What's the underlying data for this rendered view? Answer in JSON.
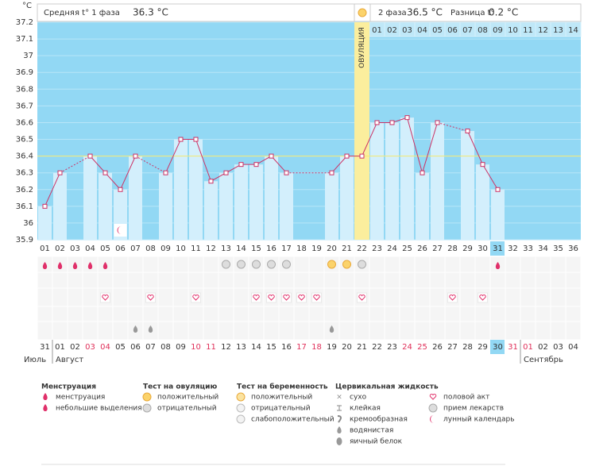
{
  "header": {
    "phase1_label": "Средняя t° 1 фаза",
    "phase1_value": "36.3 °C",
    "phase2_label": "2 фаза",
    "phase2_value": "36.5 °C",
    "diff_label": "Разница t°",
    "diff_value": "0.2 °C"
  },
  "chart_data": {
    "type": "line",
    "y_unit": "°C",
    "categories": [
      "01",
      "02",
      "03",
      "04",
      "05",
      "06",
      "07",
      "08",
      "09",
      "10",
      "11",
      "12",
      "13",
      "14",
      "15",
      "16",
      "17",
      "18",
      "19",
      "20",
      "21",
      "22",
      "23",
      "24",
      "25",
      "26",
      "27",
      "28",
      "29",
      "30",
      "31",
      "32",
      "33",
      "34",
      "35",
      "36"
    ],
    "values": [
      36.1,
      36.3,
      null,
      36.4,
      36.3,
      36.2,
      36.4,
      null,
      36.3,
      36.5,
      36.5,
      36.25,
      36.3,
      36.35,
      36.35,
      36.4,
      36.3,
      null,
      null,
      36.3,
      36.4,
      36.4,
      36.6,
      36.6,
      36.63,
      36.3,
      36.6,
      null,
      36.55,
      36.35,
      36.2,
      null,
      null,
      null,
      null,
      null
    ],
    "color": "#cc3366",
    "ylim": [
      35.9,
      37.2
    ],
    "yticks": [
      35.9,
      36,
      36.1,
      36.2,
      36.3,
      36.4,
      36.5,
      36.6,
      36.7,
      36.8,
      36.9,
      37,
      37.1,
      37.2
    ],
    "grid": true,
    "coverline": 36.4,
    "ovulation_category": "22",
    "ovulation_label": "ОВУЛЯЦИЯ",
    "phase2_days": [
      "01",
      "02",
      "03",
      "04",
      "05",
      "06",
      "07",
      "08",
      "09",
      "10",
      "11",
      "12",
      "13",
      "14"
    ],
    "today_category": "31",
    "dates": [
      "31",
      "01",
      "02",
      "03",
      "04",
      "05",
      "06",
      "07",
      "08",
      "09",
      "10",
      "11",
      "12",
      "13",
      "14",
      "15",
      "16",
      "17",
      "18",
      "19",
      "20",
      "21",
      "22",
      "23",
      "24",
      "25",
      "26",
      "27",
      "28",
      "29",
      "30",
      "31",
      "01",
      "02",
      "03",
      "04"
    ],
    "holidays": [
      3,
      4,
      10,
      11,
      17,
      18,
      24,
      25,
      31,
      32
    ],
    "months": [
      {
        "label": "Июль",
        "start": 0
      },
      {
        "label": "Август",
        "start": 1
      },
      {
        "label": "Сентябрь",
        "start": 32
      }
    ],
    "icons": {
      "menstruation": [
        0,
        1,
        2,
        3,
        4,
        30
      ],
      "ovulation_negative": [
        12,
        13,
        14,
        15,
        16,
        21
      ],
      "ovulation_positive": [
        19,
        20
      ],
      "intercourse": [
        4,
        7,
        10,
        14,
        15,
        16,
        17,
        18,
        21,
        27,
        29
      ],
      "watery": [
        6,
        7,
        19
      ],
      "lunar": [
        5
      ]
    }
  },
  "legend": [
    {
      "title": "Менструация",
      "items": [
        "менструация",
        "небольшие выделения"
      ]
    },
    {
      "title": "Тест на овуляцию",
      "items": [
        "положительный",
        "отрицательный"
      ]
    },
    {
      "title": "Тест на беременность",
      "items": [
        "положительный",
        "отрицательный",
        "слабоположительный"
      ]
    },
    {
      "title": "Цервикальная жидкость",
      "items": [
        "сухо",
        "клейкая",
        "кремообразная",
        "водянистая",
        "яичный белок"
      ]
    },
    {
      "title": null,
      "items": [
        "половой акт",
        "прием лекарств",
        "лунный календарь"
      ]
    }
  ]
}
